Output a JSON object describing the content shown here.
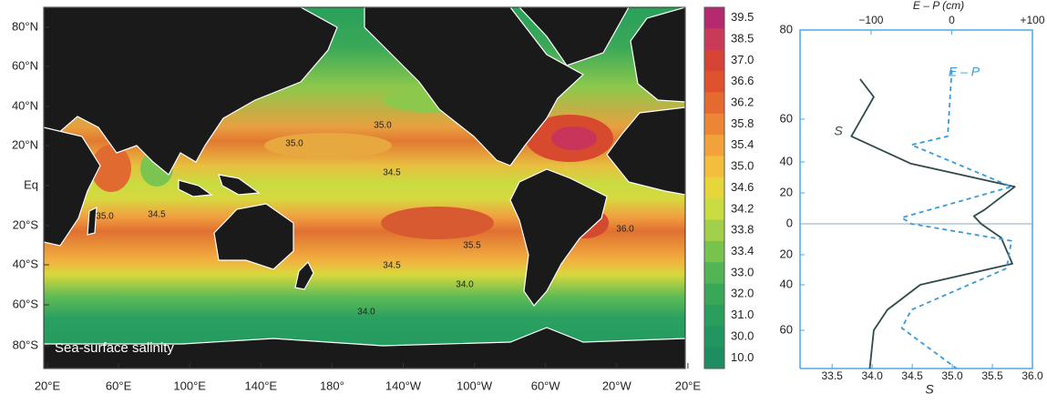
{
  "map": {
    "title": "Sea-surface salinity",
    "lat_labels": [
      "80°N",
      "60°N",
      "40°N",
      "20°N",
      "Eq",
      "20°S",
      "40°S",
      "60°S",
      "80°S"
    ],
    "lon_labels": [
      "20°E",
      "60°E",
      "100°E",
      "140°E",
      "180°",
      "140°W",
      "100°W",
      "60°W",
      "20°W",
      "20°E"
    ],
    "contour_labels": [
      "35.0",
      "35.0",
      "34.5",
      "34.5",
      "35.0",
      "35.5",
      "36.0",
      "34.5",
      "34.0",
      "34.0"
    ],
    "colorbar": {
      "labels": [
        "39.5",
        "38.5",
        "37.0",
        "36.6",
        "36.2",
        "35.8",
        "35.4",
        "35.0",
        "34.6",
        "34.2",
        "33.8",
        "33.4",
        "33.0",
        "32.0",
        "31.0",
        "30.0",
        "10.0"
      ],
      "colors": [
        "#b52a6e",
        "#c83a58",
        "#d64436",
        "#de522e",
        "#e56a30",
        "#ec8634",
        "#f2a23a",
        "#f3be3e",
        "#e6d63c",
        "#c9dc42",
        "#a2d04a",
        "#78c24e",
        "#52b454",
        "#38a858",
        "#2a9e5c",
        "#229660",
        "#1e8e62"
      ]
    }
  },
  "chart_data": {
    "type": "line",
    "x_title": "S",
    "x2_title": "E – P (cm)",
    "xlim": [
      33.1,
      36.0
    ],
    "xticks": [
      33.5,
      {
        "value": 34.0,
        "label": "34.0"
      },
      34.5,
      {
        "value": 35.0,
        "label": "35.0"
      },
      35.5,
      {
        "value": 36.0,
        "label": "36.0"
      }
    ],
    "x2lim": [
      -188,
      100
    ],
    "x2ticks": [
      {
        "value": -100,
        "label": "−100"
      },
      0,
      {
        "value": 100,
        "label": "+100"
      }
    ],
    "ylim": [
      -75,
      80
    ],
    "yticks": [
      80,
      60,
      40,
      20,
      0,
      {
        "value": -20,
        "label": "20"
      },
      {
        "value": -40,
        "label": "40"
      },
      {
        "value": -60,
        "label": "60"
      }
    ],
    "series": [
      {
        "name": "S",
        "color": "#2f4a4a",
        "dash": false,
        "axis": "x",
        "lat": [
          69,
          65,
          52,
          39,
          24,
          9,
          5,
          0,
          -9,
          -26,
          -40,
          -51,
          -60,
          -75
        ],
        "values": [
          33.85,
          34.02,
          33.74,
          34.48,
          35.78,
          35.4,
          35.27,
          35.36,
          35.61,
          35.75,
          34.6,
          34.19,
          34.02,
          33.97
        ]
      },
      {
        "name": "E – P",
        "color": "#3a9ad9",
        "dash": true,
        "axis": "x2",
        "lat": [
          71,
          52,
          48,
          24,
          4,
          0,
          -11,
          -29,
          -51,
          -59,
          -75
        ],
        "values": [
          0,
          -5,
          -50,
          74,
          -62,
          -50,
          74,
          68,
          -50,
          -62,
          6
        ]
      }
    ]
  }
}
